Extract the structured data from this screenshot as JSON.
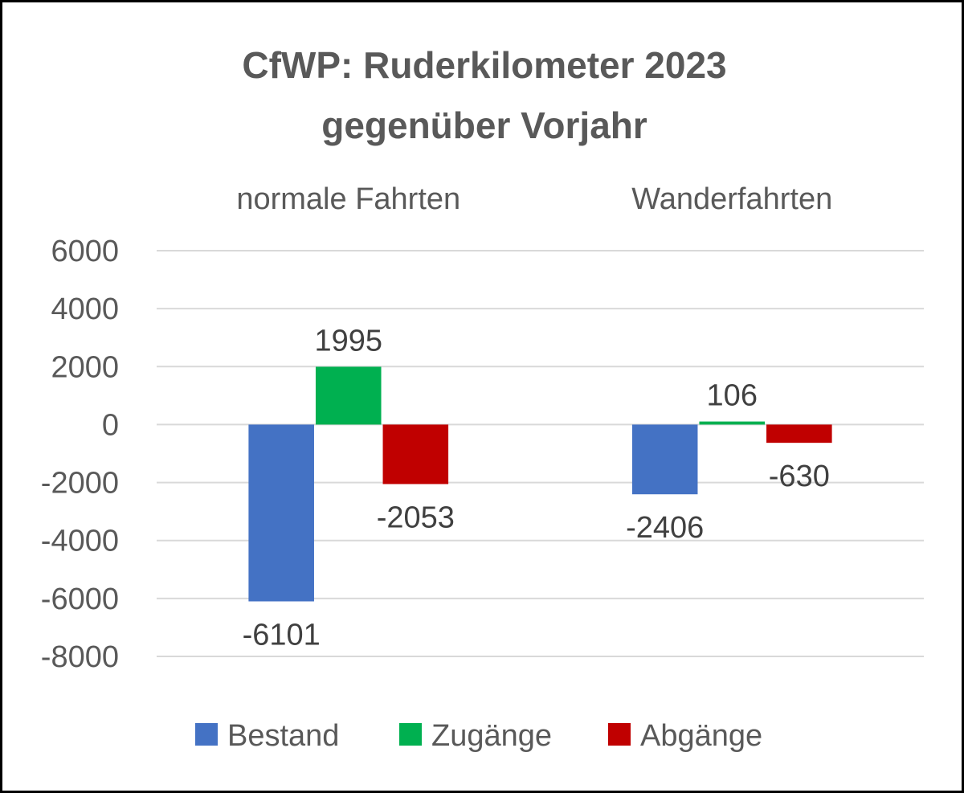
{
  "chart_data": {
    "type": "bar",
    "title_line1": "CfWP: Ruderkilometer 2023",
    "title_line2": "gegenüber Vorjahr",
    "categories": [
      "normale Fahrten",
      "Wanderfahrten"
    ],
    "series": [
      {
        "name": "Bestand",
        "color": "#4472C4",
        "values": [
          -6101,
          -2406
        ]
      },
      {
        "name": "Zugänge",
        "color": "#00B050",
        "values": [
          1995,
          106
        ]
      },
      {
        "name": "Abgänge",
        "color": "#C00000",
        "values": [
          -2053,
          -630
        ]
      }
    ],
    "ylim": [
      -8000,
      6000
    ],
    "yticks": [
      "6000",
      "4000",
      "2000",
      "0",
      "-2000",
      "-4000",
      "-6000",
      "-8000"
    ],
    "category_axis_position": "top",
    "grid": true,
    "legend_position": "bottom"
  }
}
